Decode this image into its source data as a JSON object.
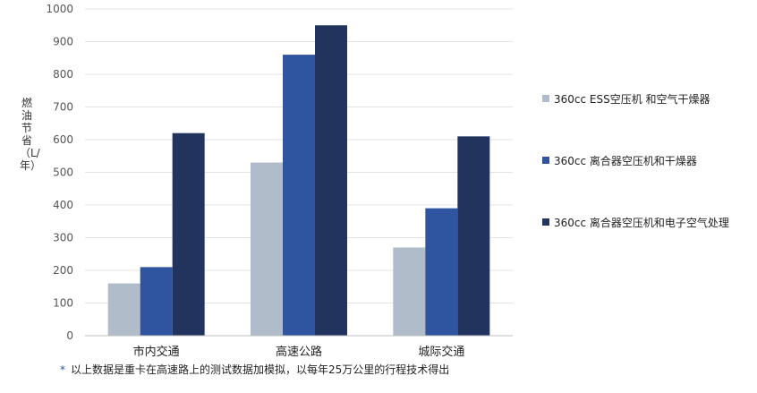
{
  "chart_data": {
    "type": "bar",
    "categories": [
      "市内交通",
      "高速公路",
      "城际交通"
    ],
    "series": [
      {
        "name": "360cc  ESS空压机  和空气干燥器",
        "color": "#b1bccb",
        "values": [
          160,
          530,
          270
        ]
      },
      {
        "name": "360cc  离合器空压机和干燥器",
        "color": "#2f55a0",
        "values": [
          210,
          860,
          390
        ]
      },
      {
        "name": "360cc  离合器空压机和电子空气处理",
        "color": "#22345d",
        "values": [
          620,
          950,
          610
        ]
      }
    ],
    "ylabel": "燃油节省（L/年）",
    "ylim": [
      0,
      1000
    ],
    "yticks": [
      0,
      100,
      200,
      300,
      400,
      500,
      600,
      700,
      800,
      900,
      1000
    ],
    "grid": true,
    "legend": "right"
  },
  "footnote": {
    "star": "*",
    "text": "以上数据是重卡在高速路上的测试数据加模拟，以每年25万公里的行程技术得出"
  }
}
